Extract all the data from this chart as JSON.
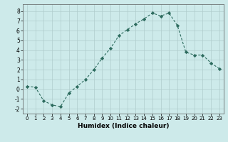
{
  "x": [
    0,
    1,
    2,
    3,
    4,
    5,
    6,
    7,
    8,
    9,
    10,
    11,
    12,
    13,
    14,
    15,
    16,
    17,
    18,
    19,
    20,
    21,
    22,
    23
  ],
  "y": [
    0.3,
    0.2,
    -1.2,
    -1.6,
    -1.8,
    -0.4,
    0.3,
    1.0,
    2.0,
    3.2,
    4.2,
    5.5,
    6.1,
    6.7,
    7.2,
    7.8,
    7.5,
    7.8,
    6.5,
    3.8,
    3.5,
    3.5,
    2.7,
    2.1
  ],
  "title": "",
  "xlabel": "Humidex (Indice chaleur)",
  "ylabel": "",
  "xlim": [
    -0.5,
    23.5
  ],
  "ylim": [
    -2.5,
    8.7
  ],
  "yticks": [
    -2,
    -1,
    0,
    1,
    2,
    3,
    4,
    5,
    6,
    7,
    8
  ],
  "xticks": [
    0,
    1,
    2,
    3,
    4,
    5,
    6,
    7,
    8,
    9,
    10,
    11,
    12,
    13,
    14,
    15,
    16,
    17,
    18,
    19,
    20,
    21,
    22,
    23
  ],
  "line_color": "#2d6b5e",
  "marker": "D",
  "marker_size": 2.2,
  "bg_color": "#cdeaea",
  "grid_color": "#b0cccc",
  "fig_bg": "#cdeaea"
}
